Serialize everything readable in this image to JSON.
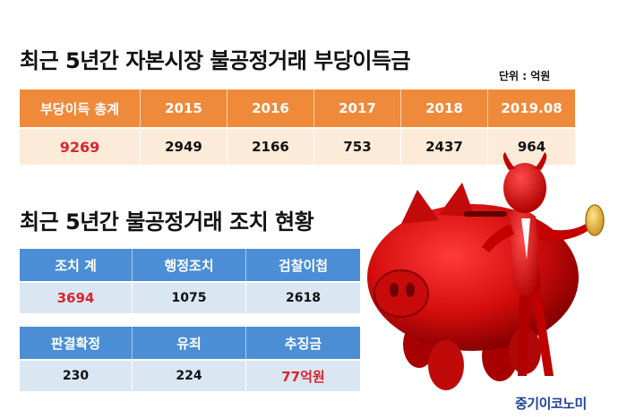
{
  "titles": {
    "profit": "최근 5년간 자본시장 불공정거래 부당이득금",
    "actions": "최근 5년간 불공정거래 조치 현황"
  },
  "unit": "단위 : 억원",
  "profit_table": {
    "headers": [
      "부당이득 총계",
      "2015",
      "2016",
      "2017",
      "2018",
      "2019.08"
    ],
    "values": [
      "9269",
      "2949",
      "2166",
      "753",
      "2437",
      "964"
    ]
  },
  "action_table_1": {
    "headers": [
      "조치 계",
      "행정조치",
      "검찰이첩"
    ],
    "values": [
      "3694",
      "1075",
      "2618"
    ]
  },
  "action_table_2": {
    "headers": [
      "판결확정",
      "유죄",
      "추징금"
    ],
    "values": [
      "230",
      "224",
      "77억원"
    ]
  },
  "brand": "중기이코노미",
  "colors": {
    "orange_header": "#ef8a3a",
    "orange_row": "#fdebd9",
    "blue_header": "#4b8ed5",
    "blue_row": "#dbe6f3",
    "highlight": "#d9262e",
    "brand": "#1d3f9a"
  },
  "illustration": [
    "red-piggy-bank",
    "red-devil-figure",
    "gold-coin"
  ]
}
